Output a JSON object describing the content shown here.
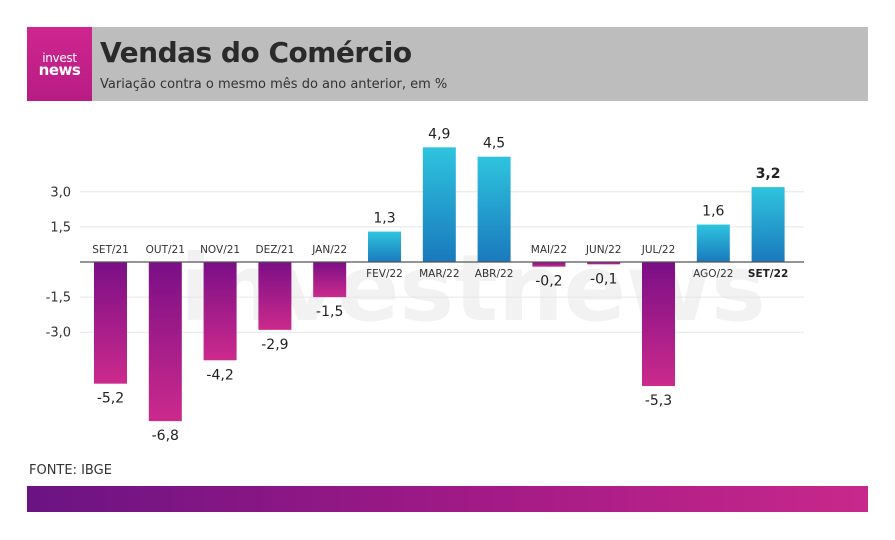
{
  "brand": {
    "logo_line1": "invest",
    "logo_line2": "news",
    "watermark": "investnews",
    "primary": "#c8288b"
  },
  "header": {
    "title": "Vendas do Comércio",
    "subtitle": "Variação contra o mesmo mês do ano anterior, em %"
  },
  "source": "FONTE: IBGE",
  "chart_data": {
    "type": "bar",
    "categories": [
      "SET/21",
      "OUT/21",
      "NOV/21",
      "DEZ/21",
      "JAN/22",
      "FEV/22",
      "MAR/22",
      "ABR/22",
      "MAI/22",
      "JUN/22",
      "JUL/22",
      "AGO/22",
      "SET/22"
    ],
    "values": [
      -5.2,
      -6.8,
      -4.2,
      -2.9,
      -1.5,
      1.3,
      4.9,
      4.5,
      -0.2,
      -0.1,
      -5.3,
      1.6,
      3.2
    ],
    "value_labels": [
      "-5,2",
      "-6,8",
      "-4,2",
      "-2,9",
      "-1,5",
      "1,3",
      "4,9",
      "4,5",
      "-0,2",
      "-0,1",
      "-5,3",
      "1,6",
      "3,2"
    ],
    "highlight_index": 12,
    "yticks": [
      3.0,
      1.5,
      -1.5,
      -3.0
    ],
    "ytick_labels": [
      "3,0",
      "1,5",
      "-1,5",
      "-3,0"
    ],
    "grid": true,
    "colors": {
      "positive_top": "#2ec4de",
      "positive_bottom": "#1a79bd",
      "negative_top": "#7a0f86",
      "negative_bottom": "#cc2a8c"
    }
  }
}
